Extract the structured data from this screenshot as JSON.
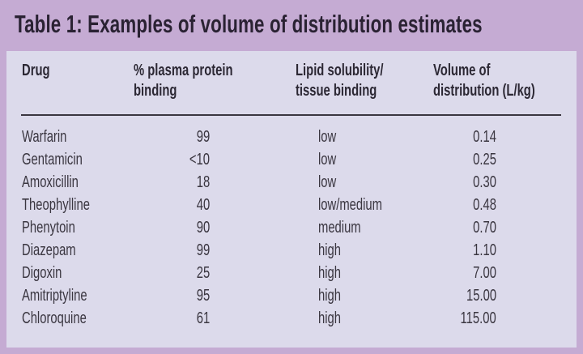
{
  "title": "Table 1: Examples of volume of distribution estimates",
  "headers": {
    "drug": "Drug",
    "binding_1": "% plasma protein",
    "binding_2": "binding",
    "lipid_1": "Lipid solubility/",
    "lipid_2": "tissue binding",
    "volume_1": "Volume of",
    "volume_2": "distribution (L/kg)"
  },
  "rows": [
    {
      "drug": "Warfarin",
      "binding": "99",
      "lipid": "low",
      "volume": "0.14"
    },
    {
      "drug": "Gentamicin",
      "binding": "<10",
      "lipid": "low",
      "volume": "0.25"
    },
    {
      "drug": "Amoxicillin",
      "binding": "18",
      "lipid": "low",
      "volume": "0.30"
    },
    {
      "drug": "Theophylline",
      "binding": "40",
      "lipid": "low/medium",
      "volume": "0.48"
    },
    {
      "drug": "Phenytoin",
      "binding": "90",
      "lipid": "medium",
      "volume": "0.70"
    },
    {
      "drug": "Diazepam",
      "binding": "99",
      "lipid": "high",
      "volume": "1.10"
    },
    {
      "drug": "Digoxin",
      "binding": "25",
      "lipid": "high",
      "volume": "7.00"
    },
    {
      "drug": "Amitriptyline",
      "binding": "95",
      "lipid": "high",
      "volume": "15.00"
    },
    {
      "drug": "Chloroquine",
      "binding": "61",
      "lipid": "high",
      "volume": "115.00"
    }
  ],
  "colors": {
    "frame": "#c5abd3",
    "panel": "#dcdaeb",
    "text": "#3a3640"
  }
}
